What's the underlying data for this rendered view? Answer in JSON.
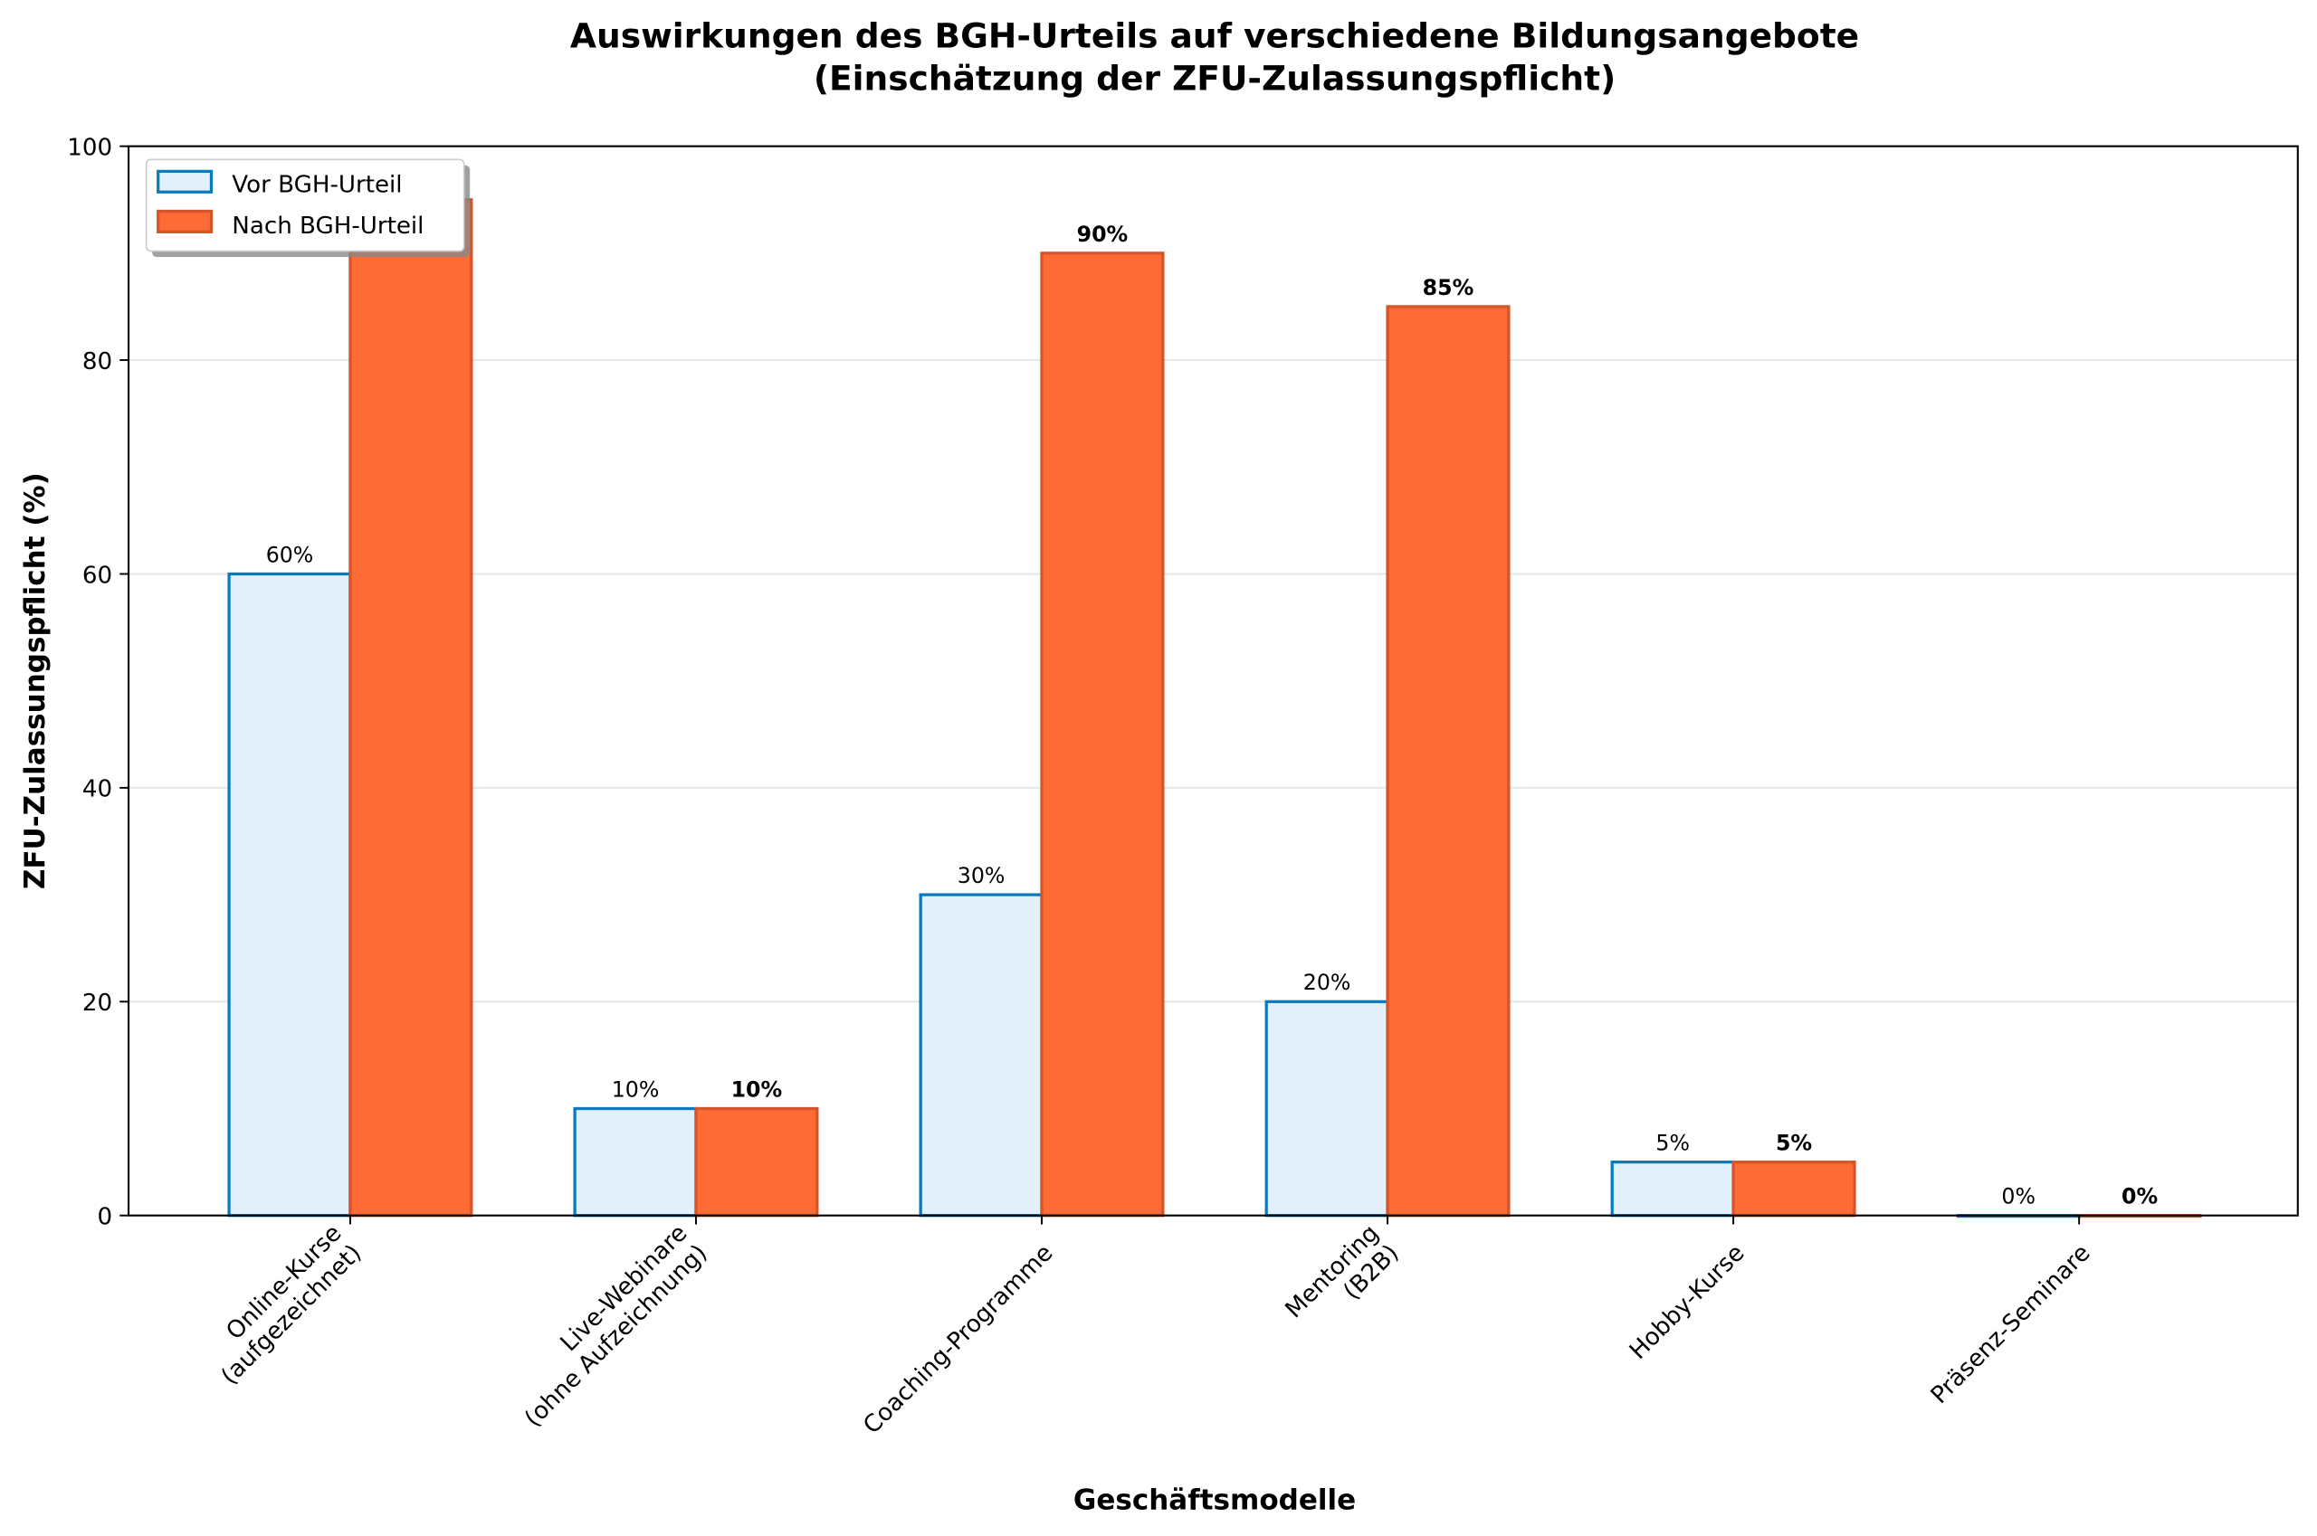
{
  "chart_data": {
    "type": "bar",
    "title": "Auswirkungen des BGH-Urteils auf verschiedene Bildungsangebote",
    "subtitle": "(Einschätzung der ZFU-Zulassungspflicht)",
    "xlabel": "Geschäftsmodelle",
    "ylabel": "ZFU-Zulassungspflicht (%)",
    "ylim": [
      0,
      100
    ],
    "yticks": [
      0,
      20,
      40,
      60,
      80,
      100
    ],
    "grid": "y",
    "legend_placement": "top-left",
    "categories": [
      [
        "Online-Kurse",
        "(aufgezeichnet)"
      ],
      [
        "Live-Webinare",
        "(ohne Aufzeichnung)"
      ],
      [
        "Coaching-Programme"
      ],
      [
        "Mentoring",
        "(B2B)"
      ],
      [
        "Hobby-Kurse"
      ],
      [
        "Präsenz-Seminare"
      ]
    ],
    "series": [
      {
        "name": "Vor BGH-Urteil",
        "values": [
          60,
          10,
          30,
          20,
          5,
          0
        ],
        "fill": "#e3f0fb",
        "edge": "#0a7abf",
        "label_bold": false
      },
      {
        "name": "Nach BGH-Urteil",
        "values": [
          95,
          10,
          90,
          85,
          5,
          0
        ],
        "fill": "#ff6b35",
        "edge": "#d4552a",
        "label_bold": true
      }
    ],
    "label_suffix": "%"
  }
}
